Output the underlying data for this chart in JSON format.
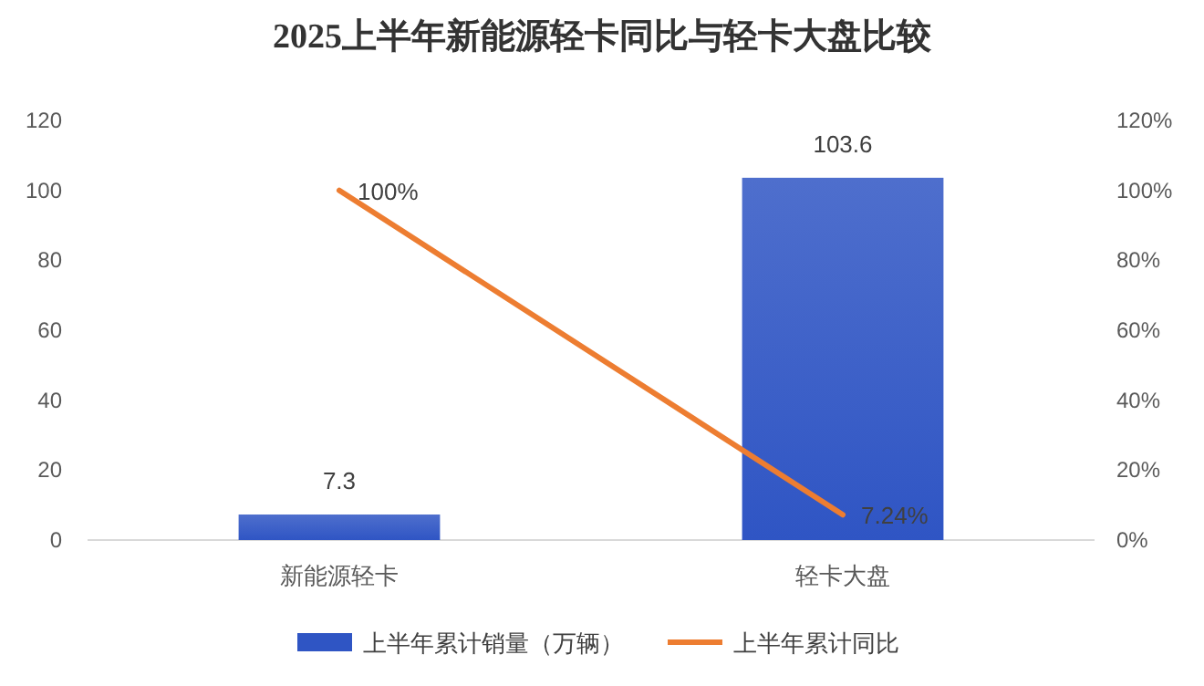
{
  "chart_data": {
    "type": "bar",
    "title": "2025上半年新能源轻卡同比与轻卡大盘比较",
    "categories": [
      "新能源轻卡",
      "轻卡大盘"
    ],
    "series": [
      {
        "name": "上半年累计销量（万辆）",
        "color": "#2f55c4",
        "values": [
          7.3,
          103.6
        ],
        "value_labels": [
          "7.3",
          "103.6"
        ]
      },
      {
        "name": "上半年累计同比",
        "type": "line",
        "axis": "y2",
        "color": "#ed7d31",
        "values": [
          100,
          7.24
        ],
        "value_labels": [
          "100%",
          "7.24%"
        ]
      }
    ],
    "ylim": [
      0,
      120
    ],
    "yticks": [
      0,
      20,
      40,
      60,
      80,
      100,
      120
    ],
    "y2lim": [
      0,
      120
    ],
    "y2ticks": [
      {
        "value": 0,
        "label": "0%"
      },
      {
        "value": 20,
        "label": "20%"
      },
      {
        "value": 40,
        "label": "40%"
      },
      {
        "value": 60,
        "label": "60%"
      },
      {
        "value": 80,
        "label": "80%"
      },
      {
        "value": 100,
        "label": "100%"
      },
      {
        "value": 120,
        "label": "120%"
      }
    ],
    "grid": false,
    "legend": "bottom",
    "marker": "none",
    "line_style": "solid"
  }
}
